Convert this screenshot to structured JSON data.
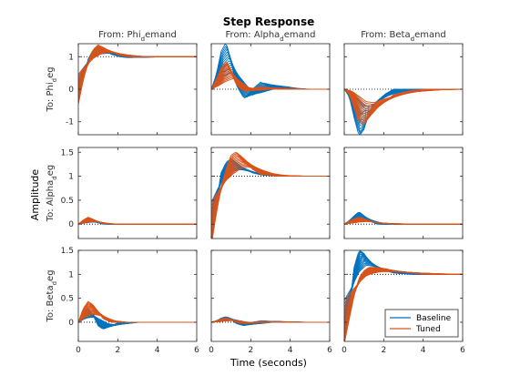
{
  "chart_data": {
    "type": "line",
    "title": "Step Response",
    "xlabel": "Time (seconds)",
    "ylabel": "Amplitude",
    "xlim": [
      0,
      6
    ],
    "xticks": [
      0,
      2,
      4,
      6
    ],
    "grid": false,
    "legend_position": "bottom-right of last panel",
    "inputs": [
      {
        "from": "From: Phi",
        "sub": "d",
        "rest": "emand"
      },
      {
        "from": "From: Alpha",
        "sub": "d",
        "rest": "emand"
      },
      {
        "from": "From: Beta",
        "sub": "d",
        "rest": "emand"
      }
    ],
    "outputs": [
      {
        "to": "To: Phi",
        "sub": "d",
        "rest": "eg",
        "ylim": [
          -1.4,
          1.4
        ],
        "yticks": [
          "1",
          "0",
          "-1"
        ],
        "ytick_values": [
          1,
          0,
          -1
        ]
      },
      {
        "to": "To: Alpha",
        "sub": "d",
        "rest": "eg",
        "ylim": [
          -0.3,
          1.6
        ],
        "yticks": [
          "1.5",
          "1",
          "0.5",
          "0"
        ],
        "ytick_values": [
          1.5,
          1,
          0.5,
          0
        ]
      },
      {
        "to": "To: Beta",
        "sub": "d",
        "rest": "eg",
        "ylim": [
          -0.4,
          1.5
        ],
        "yticks": [
          "1.5",
          "1",
          "0.5",
          "0"
        ],
        "ytick_values": [
          1.5,
          1,
          0.5,
          0
        ]
      }
    ],
    "xtick_labels": [
      "0",
      "2",
      "4",
      "6"
    ],
    "series": [
      {
        "name": "Baseline",
        "color": "#0072bd"
      },
      {
        "name": "Tuned",
        "color": "#d95319"
      }
    ],
    "panels": [
      {
        "row": 0,
        "col": 0,
        "target": 1,
        "baseline": {
          "x": [
            0,
            0.3,
            0.6,
            0.9,
            1.2,
            1.5,
            2,
            2.5,
            3,
            4,
            5,
            6
          ],
          "y": [
            0,
            0.55,
            0.95,
            1.15,
            1.2,
            1.15,
            1.05,
            1.0,
            0.98,
            1.0,
            1.0,
            1.0
          ]
        },
        "tuned": {
          "x": [
            0,
            0.3,
            0.6,
            0.9,
            1.2,
            1.5,
            2,
            2.5,
            3,
            4,
            5,
            6
          ],
          "y": [
            0,
            0.5,
            0.9,
            1.15,
            1.25,
            1.2,
            1.1,
            1.03,
            1.0,
            1.0,
            1.0,
            1.0
          ]
        }
      },
      {
        "row": 0,
        "col": 1,
        "target": 0,
        "baseline": {
          "x": [
            0,
            0.3,
            0.6,
            0.9,
            1.2,
            1.5,
            2,
            2.5,
            3,
            3.5,
            4,
            5,
            6
          ],
          "y": [
            0,
            0.3,
            0.8,
            1.0,
            0.6,
            0.1,
            -0.2,
            0.0,
            0.15,
            0.05,
            0.0,
            0.0,
            0.0
          ]
        },
        "tuned": {
          "x": [
            0,
            0.3,
            0.6,
            0.9,
            1.2,
            1.5,
            2,
            2.5,
            3,
            3.5,
            4,
            5,
            6
          ],
          "y": [
            0,
            0.2,
            0.45,
            0.6,
            0.4,
            0.1,
            -0.05,
            0.02,
            0.05,
            0.02,
            0.0,
            0.0,
            0.0
          ]
        }
      },
      {
        "row": 0,
        "col": 2,
        "target": 0,
        "baseline": {
          "x": [
            0,
            0.3,
            0.6,
            0.9,
            1.2,
            1.5,
            2,
            2.5,
            3,
            4,
            5,
            6
          ],
          "y": [
            0,
            -0.15,
            -0.6,
            -1.0,
            -0.85,
            -0.5,
            -0.25,
            -0.1,
            0.0,
            0.0,
            0.0,
            0.0
          ]
        },
        "tuned": {
          "x": [
            0,
            0.3,
            0.6,
            0.9,
            1.2,
            1.5,
            2,
            2.5,
            3,
            4,
            5,
            6
          ],
          "y": [
            0,
            -0.1,
            -0.4,
            -0.7,
            -0.75,
            -0.6,
            -0.4,
            -0.25,
            -0.12,
            -0.03,
            0.0,
            0.0
          ]
        }
      },
      {
        "row": 1,
        "col": 0,
        "target": 0,
        "baseline": {
          "x": [
            0,
            0.3,
            0.6,
            0.9,
            1.2,
            1.5,
            2,
            3,
            4,
            5,
            6
          ],
          "y": [
            0,
            0.05,
            0.08,
            0.05,
            0.02,
            0.0,
            0.0,
            0.0,
            0.0,
            0.0,
            0.0
          ]
        },
        "tuned": {
          "x": [
            0,
            0.3,
            0.6,
            0.9,
            1.2,
            1.5,
            2,
            3,
            4,
            5,
            6
          ],
          "y": [
            0,
            0.06,
            0.1,
            0.07,
            0.03,
            0.01,
            0.0,
            0.0,
            0.0,
            0.0,
            0.0
          ]
        }
      },
      {
        "row": 1,
        "col": 1,
        "target": 1,
        "baseline": {
          "x": [
            0,
            0.3,
            0.6,
            0.9,
            1.2,
            1.5,
            2,
            2.5,
            3,
            4,
            5,
            6
          ],
          "y": [
            0,
            0.6,
            1.05,
            1.2,
            1.25,
            1.2,
            1.1,
            1.05,
            1.02,
            1.0,
            1.0,
            1.0
          ]
        },
        "tuned": {
          "x": [
            0,
            0.3,
            0.6,
            0.9,
            1.2,
            1.5,
            2,
            2.5,
            3,
            4,
            5,
            6
          ],
          "y": [
            0,
            0.45,
            0.85,
            1.1,
            1.3,
            1.35,
            1.25,
            1.1,
            1.03,
            1.0,
            1.0,
            1.0
          ]
        }
      },
      {
        "row": 1,
        "col": 2,
        "target": 0,
        "baseline": {
          "x": [
            0,
            0.3,
            0.6,
            0.9,
            1.2,
            1.5,
            2,
            3,
            4,
            5,
            6
          ],
          "y": [
            0,
            0.05,
            0.12,
            0.18,
            0.12,
            0.05,
            0.0,
            0.0,
            0.0,
            0.0,
            0.0
          ]
        },
        "tuned": {
          "x": [
            0,
            0.3,
            0.6,
            0.9,
            1.2,
            1.5,
            2,
            3,
            4,
            5,
            6
          ],
          "y": [
            0,
            0.04,
            0.08,
            0.1,
            0.08,
            0.04,
            0.02,
            0.0,
            0.0,
            0.0,
            0.0
          ]
        }
      },
      {
        "row": 2,
        "col": 0,
        "target": 0,
        "baseline": {
          "x": [
            0,
            0.3,
            0.6,
            0.9,
            1.2,
            1.5,
            2,
            2.5,
            3,
            4,
            5,
            6
          ],
          "y": [
            0,
            0.15,
            0.2,
            0.1,
            -0.05,
            -0.1,
            -0.05,
            0.0,
            0.0,
            0.0,
            0.0,
            0.0
          ]
        },
        "tuned": {
          "x": [
            0,
            0.3,
            0.6,
            0.9,
            1.2,
            1.5,
            2,
            2.5,
            3,
            4,
            5,
            6
          ],
          "y": [
            0,
            0.2,
            0.3,
            0.25,
            0.15,
            0.05,
            0.0,
            0.0,
            0.0,
            0.0,
            0.0,
            0.0
          ]
        }
      },
      {
        "row": 2,
        "col": 1,
        "target": 0,
        "baseline": {
          "x": [
            0,
            0.3,
            0.6,
            0.9,
            1.2,
            1.5,
            2,
            2.5,
            3,
            4,
            5,
            6
          ],
          "y": [
            0,
            0.02,
            0.06,
            0.08,
            0.05,
            -0.02,
            -0.05,
            0.0,
            0.02,
            0.0,
            0.0,
            0.0
          ]
        },
        "tuned": {
          "x": [
            0,
            0.3,
            0.6,
            0.9,
            1.2,
            1.5,
            2,
            2.5,
            3,
            4,
            5,
            6
          ],
          "y": [
            0,
            0.02,
            0.05,
            0.06,
            0.04,
            0.0,
            -0.02,
            0.0,
            0.01,
            0.0,
            0.0,
            0.0
          ]
        }
      },
      {
        "row": 2,
        "col": 2,
        "target": 1,
        "baseline": {
          "x": [
            0,
            0.3,
            0.6,
            0.9,
            1.2,
            1.5,
            2,
            2.5,
            3,
            4,
            5,
            6
          ],
          "y": [
            0,
            0.5,
            1.1,
            1.35,
            1.3,
            1.2,
            1.1,
            1.05,
            1.02,
            1.0,
            1.0,
            1.0
          ]
        },
        "tuned": {
          "x": [
            0,
            0.3,
            0.6,
            0.9,
            1.2,
            1.5,
            2,
            2.5,
            3,
            4,
            5,
            6
          ],
          "y": [
            0,
            0.35,
            0.7,
            0.95,
            1.05,
            1.1,
            1.1,
            1.08,
            1.05,
            1.02,
            1.0,
            1.0
          ]
        }
      }
    ]
  }
}
